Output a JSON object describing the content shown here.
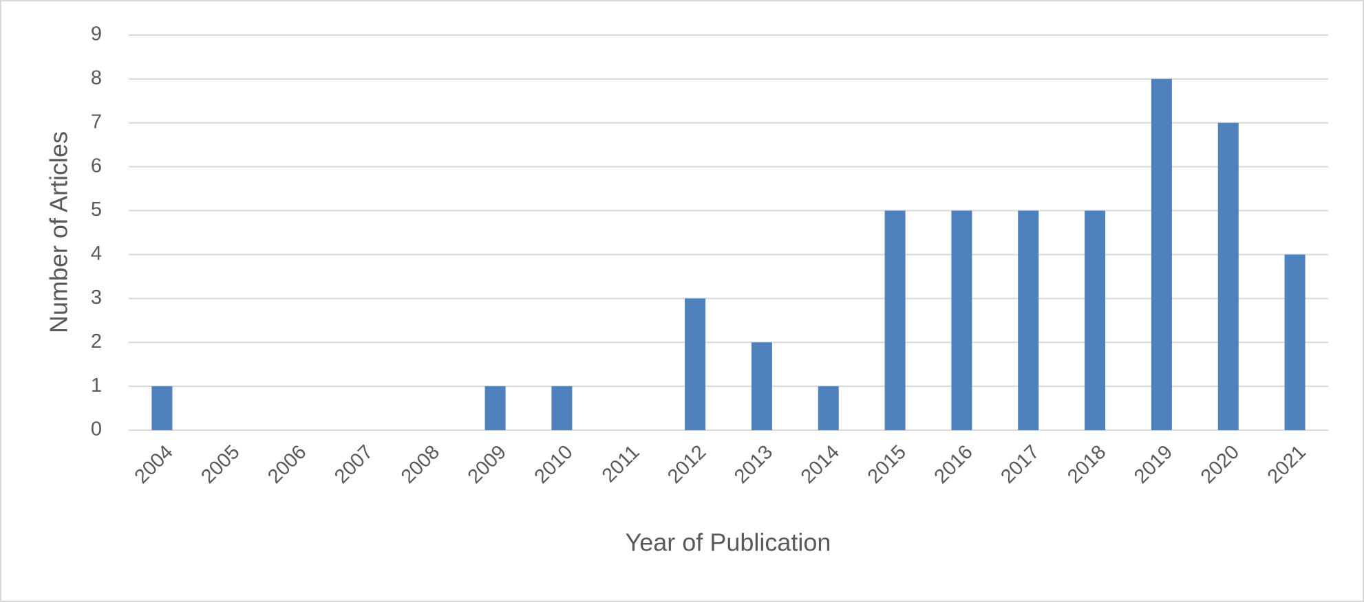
{
  "chart_data": {
    "type": "bar",
    "x_label": "Year of Publication",
    "y_label": "Number of Articles",
    "categories": [
      "2004",
      "2005",
      "2006",
      "2007",
      "2008",
      "2009",
      "2010",
      "2011",
      "2012",
      "2013",
      "2014",
      "2015",
      "2016",
      "2017",
      "2018",
      "2019",
      "2020",
      "2021"
    ],
    "values": [
      1,
      0,
      0,
      0,
      0,
      1,
      1,
      0,
      3,
      2,
      1,
      5,
      5,
      5,
      5,
      8,
      7,
      4
    ],
    "color": "#4f81bd",
    "ylim": [
      0,
      9
    ],
    "yticks": [
      0,
      1,
      2,
      3,
      4,
      5,
      6,
      7,
      8,
      9
    ],
    "grid": true
  }
}
